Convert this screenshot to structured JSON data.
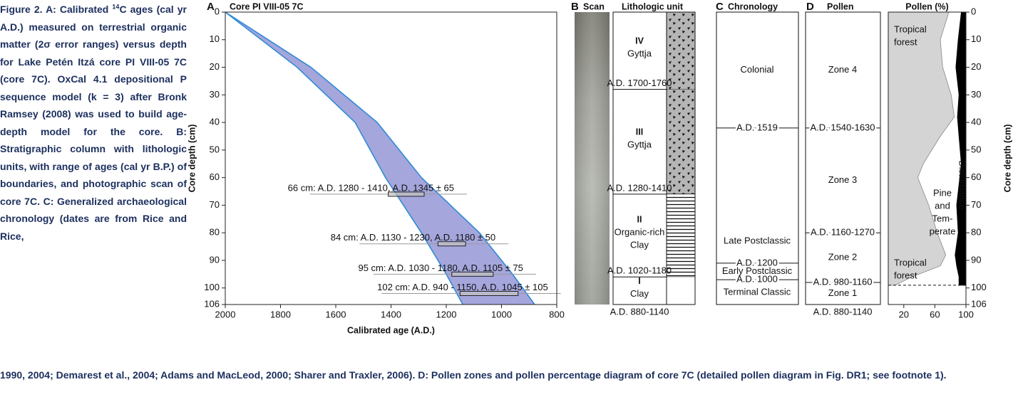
{
  "caption": {
    "label": "Figure 2.",
    "parts": [
      "A: Calibrated ",
      "14",
      "C ages (cal yr A.D.) measured on terrestrial organic matter (2σ error ranges) versus depth for Lake Petén Itzá core PI VIII-05 7C (core 7C). OxCal 4.1 depositional P sequence model (k = 3) after Bronk Ramsey (2008) was used to build age-depth model for the core. B: Stratigraphic column with lithologic units, with range of ages (cal yr B.P.) of boundaries, and photographic scan of core 7C. C: Generalized archaeological chronology (dates are from Rice and Rice,",
      "1990, 2004; Demarest et al., 2004; Adams and MacLeod, 2000; Sharer and Traxler, 2006). D: Pollen zones and pollen percentage diagram of core 7C (detailed pollen diagram in Fig. DR1; see footnote 1)."
    ]
  },
  "chart_data": [
    {
      "type": "band",
      "letter": "A",
      "title": "Core PI VIII-05 7C",
      "xlabel": "Calibrated age (A.D.)",
      "ylabel": "Core depth (cm)",
      "xlim": [
        2000,
        800
      ],
      "xticks": [
        2000,
        1800,
        1600,
        1400,
        1200,
        1000,
        800
      ],
      "ylim": [
        0,
        106
      ],
      "yticks": [
        0,
        10,
        20,
        30,
        40,
        50,
        60,
        70,
        80,
        90,
        100,
        106
      ],
      "color": "#a5a6dc",
      "edge_color": "#2f8ad6",
      "band": {
        "depths": [
          0,
          20,
          40,
          60,
          80,
          95,
          106
        ],
        "young": [
          2000,
          1740,
          1530,
          1420,
          1290,
          1200,
          1140
        ],
        "old": [
          2000,
          1690,
          1450,
          1290,
          1080,
          960,
          880
        ]
      },
      "samples": [
        {
          "label": "66 cm: A.D. 1280 - 1410, A.D. 1345 ± 65",
          "depth": 66,
          "range": [
            1280,
            1410
          ]
        },
        {
          "label": "84 cm: A.D. 1130 - 1230, A.D. 1180 ± 50",
          "depth": 84,
          "range": [
            1130,
            1230
          ]
        },
        {
          "label": "95 cm: A.D. 1030 - 1180, A.D. 1105 ± 75",
          "depth": 95,
          "range": [
            1030,
            1180
          ]
        },
        {
          "label": "102 cm: A.D. 940 - 1150, A.D. 1045 ± 105",
          "depth": 102,
          "range": [
            940,
            1150
          ]
        }
      ]
    },
    {
      "type": "area",
      "title": "Pollen (%)",
      "ylabel": "Core depth (cm)",
      "xlim": [
        0,
        100
      ],
      "xticks": [
        20,
        60,
        100
      ],
      "ylim": [
        0,
        106
      ],
      "yticks": [
        0,
        10,
        20,
        30,
        40,
        50,
        60,
        70,
        80,
        90,
        100,
        106
      ],
      "depths": [
        0,
        10,
        20,
        30,
        38,
        45,
        55,
        60,
        70,
        80,
        88,
        92,
        96,
        99
      ],
      "series": [
        {
          "color": "#d4d4d4",
          "values": [
            78,
            67,
            70,
            81,
            85,
            67,
            45,
            38,
            52,
            63,
            74,
            67,
            30,
            9
          ]
        },
        {
          "color": "#000000",
          "values": [
            6,
            10,
            13,
            9,
            11,
            9,
            6,
            8,
            12,
            10,
            14,
            12,
            9,
            9
          ],
          "from": "right"
        }
      ],
      "annotations": {
        "tropical_upper": [
          "Tropical",
          "forest"
        ],
        "pine": [
          "Pine",
          "and",
          "Tem-",
          "perate"
        ],
        "tropical_lower": [
          "Tropical",
          "forest"
        ],
        "disturbance": "Disturbance"
      }
    }
  ],
  "columns": {
    "scan": {
      "letter": "B",
      "title": "Scan"
    },
    "lithology": {
      "title": "Lithologic unit",
      "base_label": "A.D. 880-1140",
      "units": [
        {
          "numeral": "IV",
          "name": [
            "Gyttja"
          ],
          "top": 0,
          "bottom": 28,
          "boundary_label": "A.D. 1700-1760",
          "pattern": "triangles"
        },
        {
          "numeral": "III",
          "name": [
            "Gyttja"
          ],
          "top": 28,
          "bottom": 66,
          "boundary_label": "A.D. 1280-1410",
          "pattern": "triangles"
        },
        {
          "numeral": "II",
          "name": [
            "Organic-rich",
            "Clay"
          ],
          "top": 66,
          "bottom": 96,
          "boundary_label": "A.D. 1020-1180",
          "pattern": "lines"
        },
        {
          "numeral": "I",
          "name": [
            "Clay"
          ],
          "top": 96,
          "bottom": 106,
          "pattern": "none"
        }
      ]
    },
    "chronology": {
      "letter": "C",
      "title": "Chronology",
      "boundaries": [
        {
          "label": "A.D. 1519",
          "depth": 42
        },
        {
          "label": "A.D. 1200",
          "depth": 91
        },
        {
          "label": "A.D. 1000",
          "depth": 97
        }
      ],
      "periods": [
        "Colonial",
        "Late Postclassic",
        "Early Postclassic",
        "Terminal Classic"
      ]
    },
    "pollen": {
      "letter": "D",
      "title": "Pollen",
      "base_label": "A.D. 880-1140",
      "boundaries": [
        {
          "label": "A.D. 1540-1630",
          "depth": 42
        },
        {
          "label": "A.D. 1160-1270",
          "depth": 80
        },
        {
          "label": "A.D. 980-1160",
          "depth": 98
        }
      ],
      "zones": [
        "Zone 4",
        "Zone 3",
        "Zone 2",
        "Zone 1"
      ]
    }
  }
}
